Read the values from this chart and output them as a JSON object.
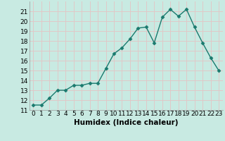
{
  "x": [
    0,
    1,
    2,
    3,
    4,
    5,
    6,
    7,
    8,
    9,
    10,
    11,
    12,
    13,
    14,
    15,
    16,
    17,
    18,
    19,
    20,
    21,
    22,
    23
  ],
  "y": [
    11.5,
    11.5,
    12.2,
    13.0,
    13.0,
    13.5,
    13.5,
    13.7,
    13.7,
    15.2,
    16.7,
    17.3,
    18.2,
    19.3,
    19.4,
    17.8,
    20.4,
    21.2,
    20.5,
    21.2,
    19.4,
    17.8,
    16.3,
    15.0
  ],
  "line_color": "#1a7a6e",
  "marker": "D",
  "marker_size": 2.5,
  "line_width": 1.0,
  "xlabel": "Humidex (Indice chaleur)",
  "ylim": [
    11,
    22
  ],
  "xlim": [
    -0.5,
    23.5
  ],
  "yticks": [
    11,
    12,
    13,
    14,
    15,
    16,
    17,
    18,
    19,
    20,
    21
  ],
  "xtick_labels": [
    "0",
    "1",
    "2",
    "3",
    "4",
    "5",
    "6",
    "7",
    "8",
    "9",
    "10",
    "11",
    "12",
    "13",
    "14",
    "15",
    "16",
    "17",
    "18",
    "19",
    "20",
    "21",
    "22",
    "23"
  ],
  "bg_color": "#c8eae2",
  "grid_color": "#e0c8c8",
  "tick_fontsize": 6.5,
  "xlabel_fontsize": 7.5
}
